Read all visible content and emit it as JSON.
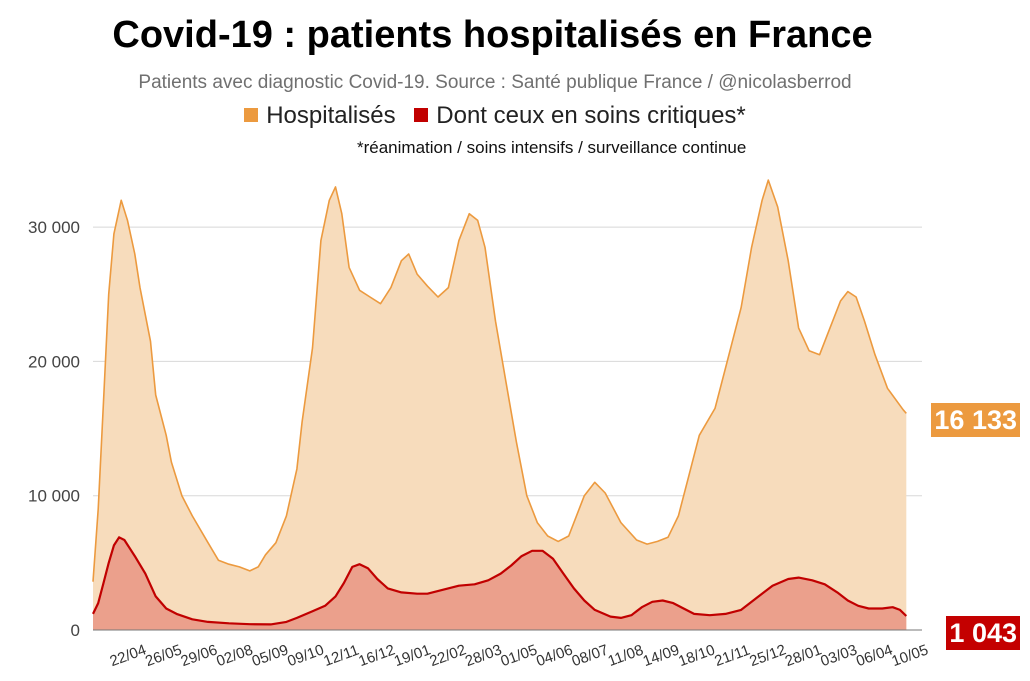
{
  "chart_data": {
    "type": "area",
    "title": "Covid-19 : patients hospitalisés en France",
    "subtitle": "Patients avec diagnostic Covid-19. Source : Santé publique France / @nicolasberrod",
    "note": "*réanimation / soins intensifs / surveillance continue",
    "xlabel": "",
    "ylabel": "",
    "ylim": [
      0,
      35000
    ],
    "yticks": [
      {
        "value": 0,
        "label": "0"
      },
      {
        "value": 10000,
        "label": "10 000"
      },
      {
        "value": 20000,
        "label": "20 000"
      },
      {
        "value": 30000,
        "label": "30 000"
      }
    ],
    "x_tick_labels": [
      "22/04",
      "26/05",
      "29/06",
      "02/08",
      "05/09",
      "09/10",
      "12/11",
      "16/12",
      "19/01",
      "22/02",
      "28/03",
      "01/05",
      "04/06",
      "08/07",
      "11/08",
      "14/09",
      "18/10",
      "21/11",
      "25/12",
      "28/01",
      "03/03",
      "06/04",
      "10/05"
    ],
    "x_tick_day_index": [
      35,
      69,
      103,
      137,
      171,
      205,
      239,
      273,
      307,
      341,
      375,
      409,
      443,
      477,
      511,
      545,
      579,
      613,
      647,
      681,
      715,
      749,
      783
    ],
    "x_range_days": [
      0,
      793
    ],
    "series": [
      {
        "name": "Hospitalisés",
        "color": "#ec9a3f",
        "fill": "#f7dcbc",
        "end_value": "16 133",
        "points": [
          [
            0,
            3600
          ],
          [
            5,
            9000
          ],
          [
            10,
            17000
          ],
          [
            15,
            25000
          ],
          [
            20,
            29500
          ],
          [
            27,
            32000
          ],
          [
            33,
            30500
          ],
          [
            40,
            28000
          ],
          [
            45,
            25500
          ],
          [
            55,
            21500
          ],
          [
            60,
            17500
          ],
          [
            70,
            14500
          ],
          [
            75,
            12500
          ],
          [
            85,
            10000
          ],
          [
            95,
            8500
          ],
          [
            110,
            6500
          ],
          [
            120,
            5200
          ],
          [
            130,
            4900
          ],
          [
            140,
            4700
          ],
          [
            150,
            4400
          ],
          [
            158,
            4700
          ],
          [
            165,
            5600
          ],
          [
            175,
            6500
          ],
          [
            185,
            8500
          ],
          [
            195,
            12000
          ],
          [
            200,
            15500
          ],
          [
            210,
            21000
          ],
          [
            218,
            29000
          ],
          [
            226,
            32000
          ],
          [
            232,
            33000
          ],
          [
            238,
            31000
          ],
          [
            245,
            27000
          ],
          [
            255,
            25300
          ],
          [
            265,
            24800
          ],
          [
            275,
            24300
          ],
          [
            285,
            25500
          ],
          [
            295,
            27500
          ],
          [
            302,
            28000
          ],
          [
            310,
            26500
          ],
          [
            320,
            25600
          ],
          [
            330,
            24800
          ],
          [
            340,
            25500
          ],
          [
            350,
            29000
          ],
          [
            360,
            31000
          ],
          [
            368,
            30500
          ],
          [
            375,
            28500
          ],
          [
            385,
            23000
          ],
          [
            395,
            18500
          ],
          [
            405,
            14000
          ],
          [
            415,
            10000
          ],
          [
            425,
            8000
          ],
          [
            435,
            7000
          ],
          [
            445,
            6600
          ],
          [
            455,
            7000
          ],
          [
            470,
            10000
          ],
          [
            480,
            11000
          ],
          [
            490,
            10200
          ],
          [
            505,
            8000
          ],
          [
            520,
            6700
          ],
          [
            530,
            6400
          ],
          [
            540,
            6600
          ],
          [
            550,
            6900
          ],
          [
            560,
            8500
          ],
          [
            570,
            11500
          ],
          [
            580,
            14500
          ],
          [
            595,
            16500
          ],
          [
            605,
            19500
          ],
          [
            620,
            24000
          ],
          [
            630,
            28500
          ],
          [
            640,
            32000
          ],
          [
            646,
            33500
          ],
          [
            655,
            31500
          ],
          [
            665,
            27500
          ],
          [
            675,
            22500
          ],
          [
            685,
            20800
          ],
          [
            695,
            20500
          ],
          [
            705,
            22500
          ],
          [
            715,
            24500
          ],
          [
            722,
            25200
          ],
          [
            730,
            24800
          ],
          [
            738,
            23000
          ],
          [
            748,
            20500
          ],
          [
            760,
            18000
          ],
          [
            775,
            16400
          ],
          [
            778,
            16133
          ]
        ]
      },
      {
        "name": "Dont ceux en soins critiques*",
        "color": "#c10000",
        "fill": "#eba08c",
        "end_value": "1 043",
        "points": [
          [
            0,
            1200
          ],
          [
            5,
            2000
          ],
          [
            10,
            3500
          ],
          [
            15,
            5000
          ],
          [
            20,
            6300
          ],
          [
            25,
            6900
          ],
          [
            30,
            6700
          ],
          [
            40,
            5500
          ],
          [
            50,
            4200
          ],
          [
            60,
            2500
          ],
          [
            70,
            1600
          ],
          [
            80,
            1200
          ],
          [
            95,
            800
          ],
          [
            110,
            600
          ],
          [
            130,
            500
          ],
          [
            150,
            430
          ],
          [
            170,
            420
          ],
          [
            185,
            600
          ],
          [
            195,
            900
          ],
          [
            210,
            1400
          ],
          [
            222,
            1800
          ],
          [
            232,
            2500
          ],
          [
            240,
            3500
          ],
          [
            248,
            4700
          ],
          [
            255,
            4900
          ],
          [
            263,
            4600
          ],
          [
            272,
            3800
          ],
          [
            282,
            3100
          ],
          [
            295,
            2800
          ],
          [
            310,
            2700
          ],
          [
            320,
            2700
          ],
          [
            335,
            3000
          ],
          [
            350,
            3300
          ],
          [
            365,
            3400
          ],
          [
            378,
            3700
          ],
          [
            390,
            4200
          ],
          [
            400,
            4800
          ],
          [
            410,
            5500
          ],
          [
            420,
            5900
          ],
          [
            430,
            5900
          ],
          [
            440,
            5300
          ],
          [
            450,
            4200
          ],
          [
            460,
            3100
          ],
          [
            470,
            2200
          ],
          [
            480,
            1500
          ],
          [
            495,
            1000
          ],
          [
            505,
            900
          ],
          [
            515,
            1100
          ],
          [
            525,
            1700
          ],
          [
            535,
            2100
          ],
          [
            545,
            2200
          ],
          [
            555,
            2000
          ],
          [
            565,
            1600
          ],
          [
            575,
            1200
          ],
          [
            590,
            1100
          ],
          [
            605,
            1200
          ],
          [
            620,
            1500
          ],
          [
            635,
            2400
          ],
          [
            650,
            3300
          ],
          [
            665,
            3800
          ],
          [
            675,
            3900
          ],
          [
            688,
            3700
          ],
          [
            700,
            3400
          ],
          [
            712,
            2800
          ],
          [
            722,
            2200
          ],
          [
            732,
            1800
          ],
          [
            742,
            1600
          ],
          [
            755,
            1600
          ],
          [
            765,
            1700
          ],
          [
            772,
            1500
          ],
          [
            778,
            1043
          ]
        ]
      }
    ],
    "end_labels": [
      {
        "series": "Hospitalisés",
        "text": "16 133",
        "bg": "#ec9a3f"
      },
      {
        "series": "Dont ceux en soins critiques*",
        "text": "1 043",
        "bg": "#c40000"
      }
    ]
  },
  "legend": {
    "items": [
      {
        "label": "Hospitalisés",
        "color": "#ec9a3f"
      },
      {
        "label": "Dont ceux en soins critiques*",
        "color": "#c10000"
      }
    ]
  }
}
